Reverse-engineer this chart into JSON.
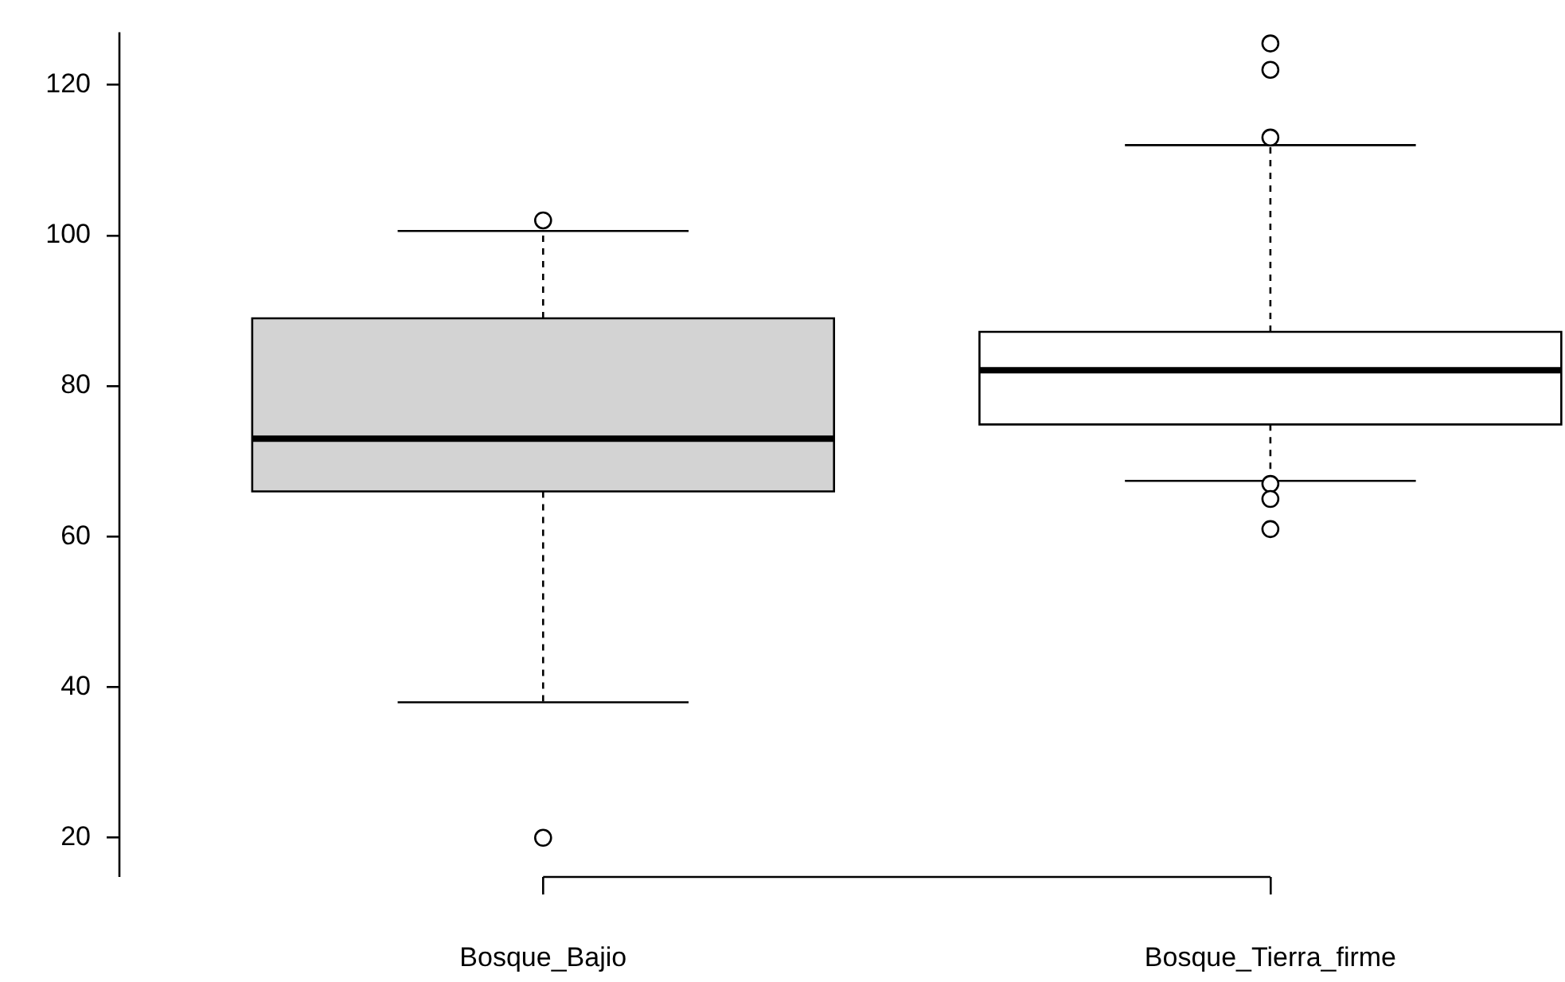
{
  "chart_data": {
    "type": "box",
    "categories": [
      "Bosque_Bajio",
      "Bosque_Tierra_firme"
    ],
    "boxes": [
      {
        "low": 38,
        "q1": 66,
        "median": 73,
        "q3": 89,
        "high": 100.6,
        "outliers": [
          102,
          20
        ]
      },
      {
        "low": 67.4,
        "q1": 74.9,
        "median": 82.1,
        "q3": 87.2,
        "high": 112,
        "outliers": [
          125.5,
          122,
          113,
          67,
          65,
          61
        ]
      }
    ],
    "colors": [
      "#d3d3d3",
      "#ffffff"
    ],
    "ylim": [
      14.8,
      127
    ],
    "yticks": [
      20,
      40,
      60,
      80,
      100,
      120
    ],
    "grid": false,
    "legend": false,
    "marker": "circle",
    "line_style": "dashed"
  }
}
